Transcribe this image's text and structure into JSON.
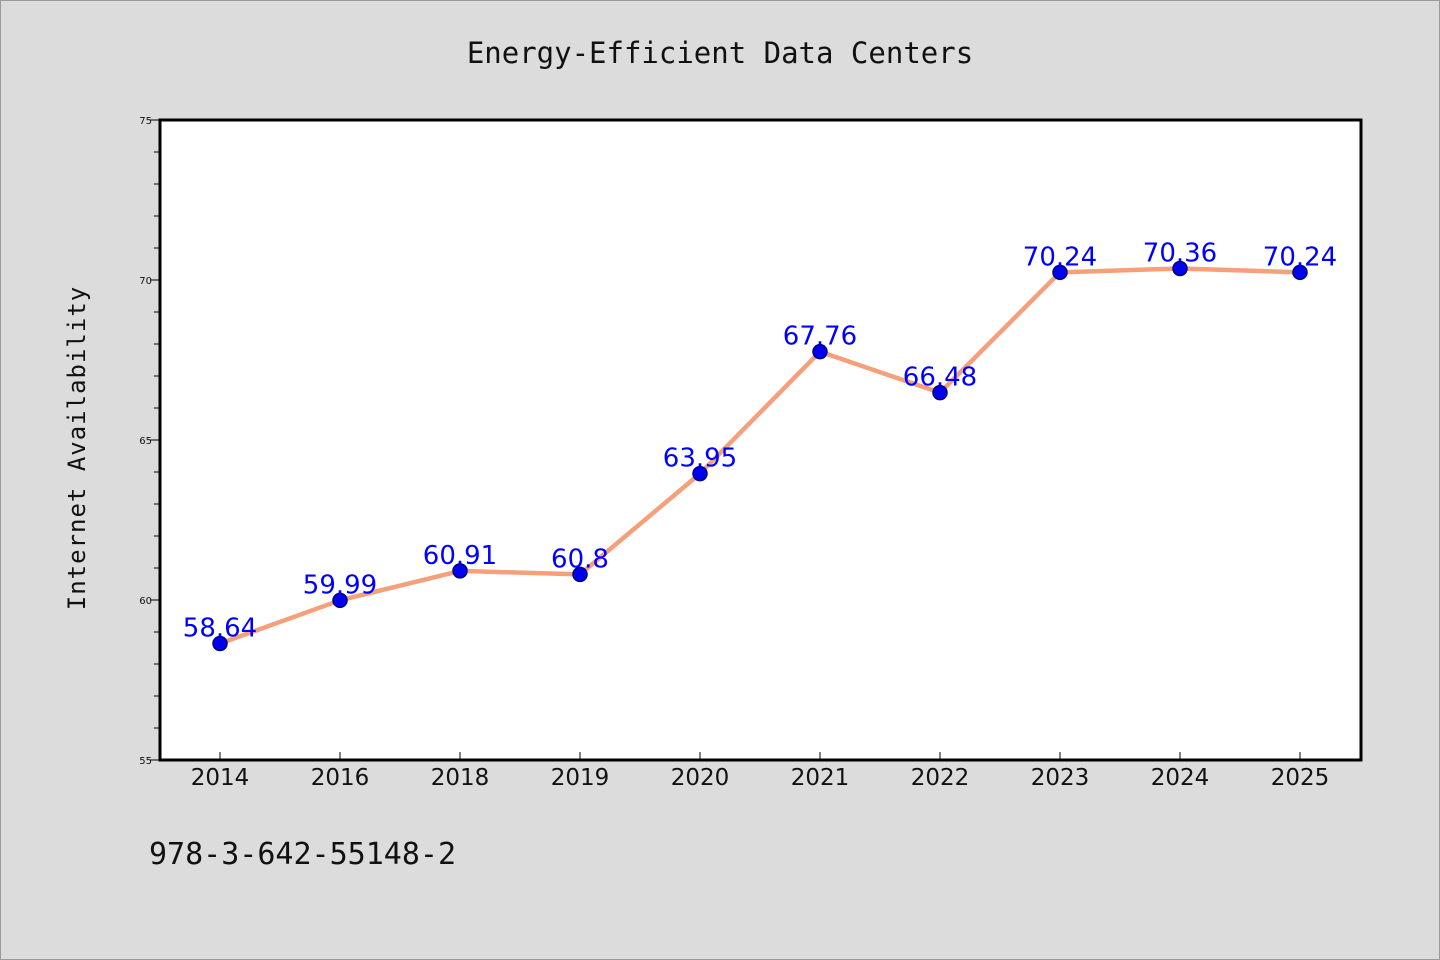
{
  "chart_data": {
    "type": "line",
    "title": "Energy-Efficient Data Centers",
    "xlabel": "",
    "ylabel": "Internet Availability",
    "categories": [
      "2014",
      "2016",
      "2018",
      "2019",
      "2020",
      "2021",
      "2022",
      "2023",
      "2024",
      "2025"
    ],
    "series": [
      {
        "values": [
          58.64,
          59.99,
          60.91,
          60.8,
          63.95,
          67.76,
          66.48,
          70.24,
          70.36,
          70.24
        ]
      }
    ],
    "data_labels": [
      "58.64",
      "59.99",
      "60.91",
      "60.8",
      "63.95",
      "67.76",
      "66.48",
      "70.24",
      "70.36",
      "70.24"
    ],
    "ylim": [
      55,
      75
    ],
    "yticks": [
      "55",
      "60",
      "65",
      "70",
      "75"
    ],
    "grid": false,
    "legend": "none",
    "colors": {
      "line": "#f4a07a",
      "marker": "#0000ee",
      "marker_edge": "#000080",
      "data_label": "#0000ff",
      "background": "#dcdcdc",
      "plot_area": "#ffffff"
    }
  },
  "footer": {
    "isbn": "978-3-642-55148-2"
  }
}
